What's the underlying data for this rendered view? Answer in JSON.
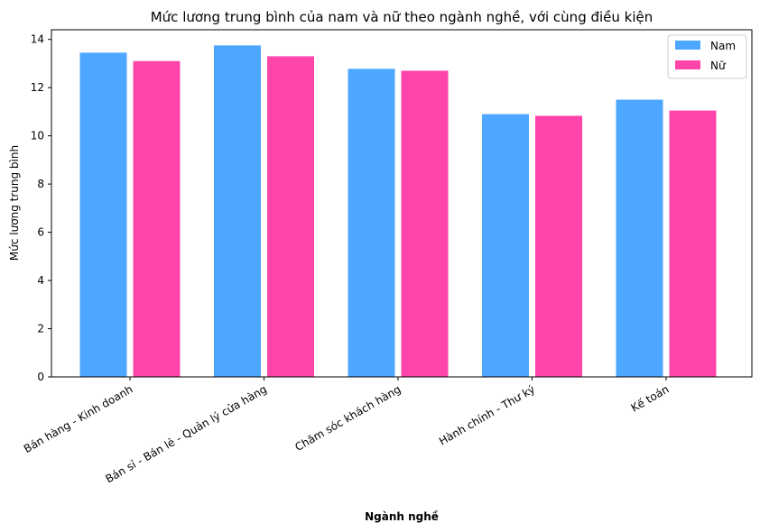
{
  "chart_data": {
    "type": "bar",
    "title": "Mức lương trung bình của nam và nữ theo ngành nghề, với cùng điều kiện",
    "xlabel": "Ngành nghề",
    "ylabel": "Mức lương trung bình",
    "categories": [
      "Bán hàng - Kinh doanh",
      "Bán sỉ - Bán lẻ - Quản lý cửa hàng",
      "Chăm sóc khách hàng",
      "Hành chính - Thư ký",
      "Kế toán"
    ],
    "series": [
      {
        "name": "Nam",
        "color": "#4da6ff",
        "values": [
          13.45,
          13.75,
          12.78,
          10.9,
          11.5
        ]
      },
      {
        "name": "Nữ",
        "color": "#ff44aa",
        "values": [
          13.1,
          13.3,
          12.7,
          10.83,
          11.05
        ]
      }
    ],
    "ylim": [
      0,
      14.4
    ],
    "yticks": [
      0,
      2,
      4,
      6,
      8,
      10,
      12,
      14
    ],
    "grid": false,
    "legend": "top-right"
  }
}
